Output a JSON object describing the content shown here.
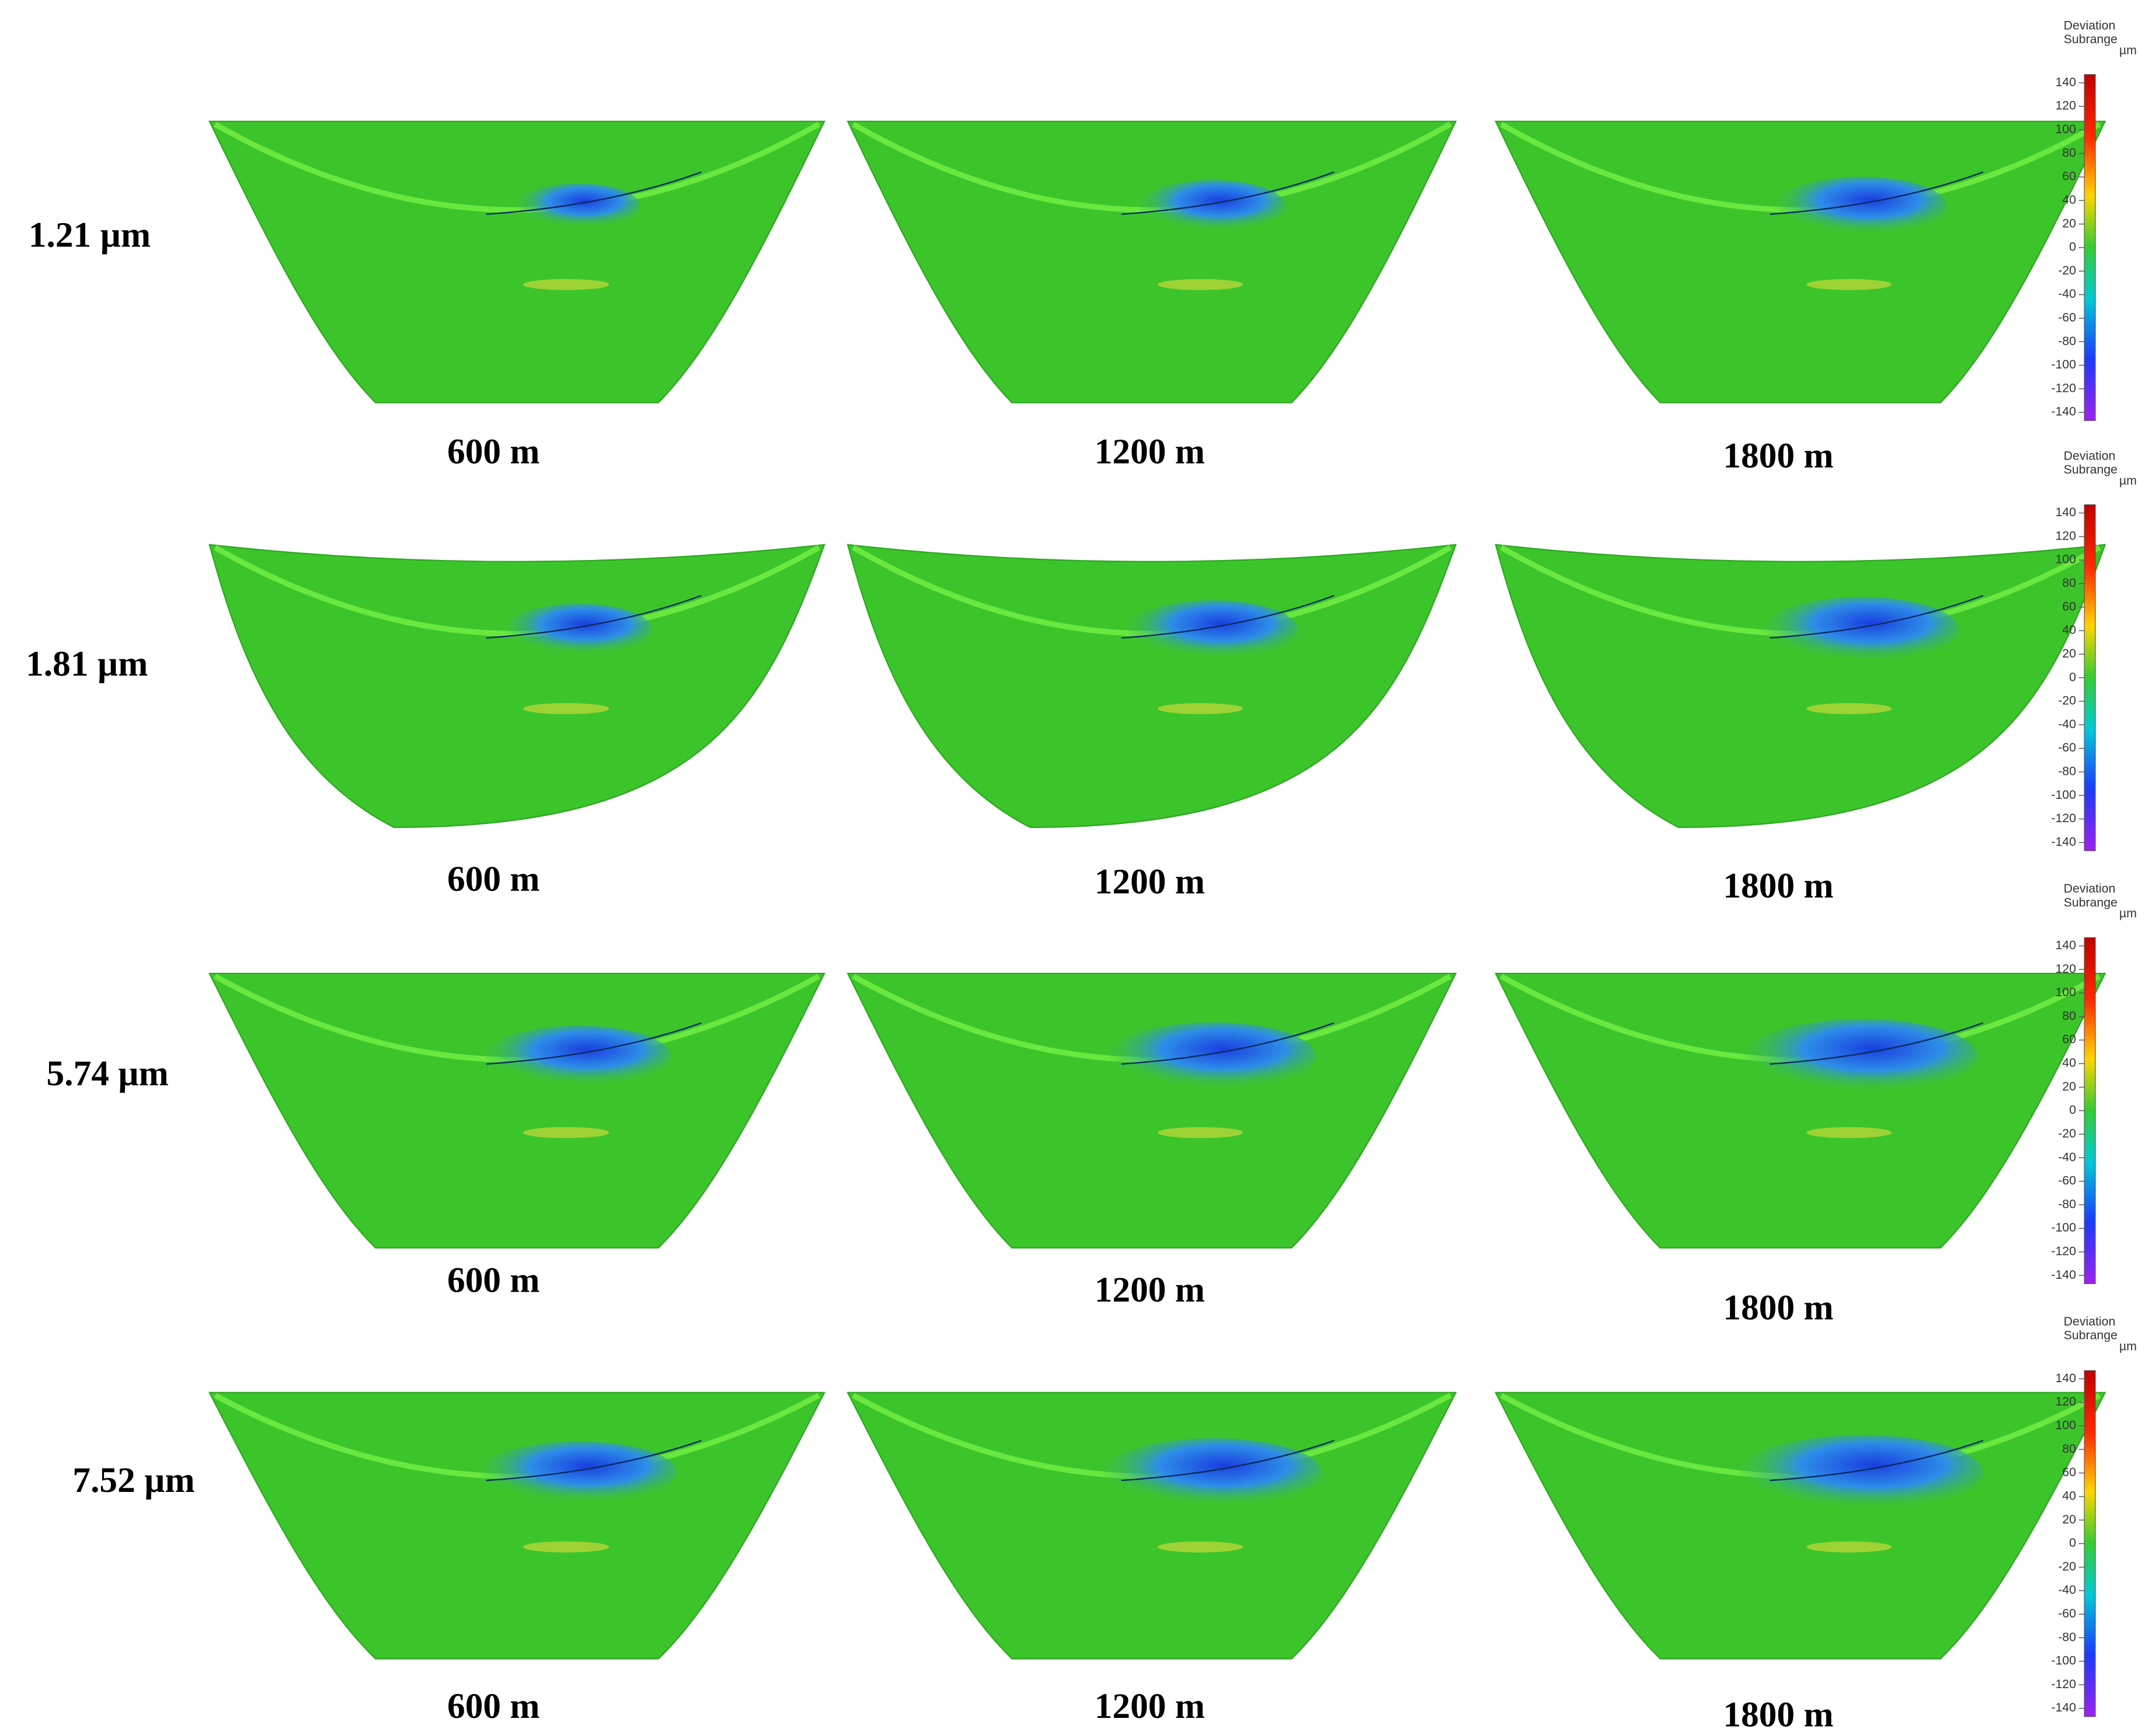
{
  "rows": [
    {
      "label": "1.21 µm",
      "captions": [
        "600 m",
        "1200 m",
        "1800 m"
      ]
    },
    {
      "label": "1.81 µm",
      "captions": [
        "600 m",
        "1200 m",
        "1800 m"
      ]
    },
    {
      "label": "5.74 µm",
      "captions": [
        "600 m",
        "1200 m",
        "1800 m"
      ]
    },
    {
      "label": "7.52 µm",
      "captions": [
        "600 m",
        "1200 m",
        "1800 m"
      ]
    }
  ],
  "colorbar": {
    "title": [
      "Deviation",
      "Subrange"
    ],
    "unit": "µm",
    "ticks": [
      140,
      120,
      100,
      80,
      60,
      40,
      20,
      0,
      -20,
      -40,
      -60,
      -80,
      -100,
      -120,
      -140
    ]
  }
}
